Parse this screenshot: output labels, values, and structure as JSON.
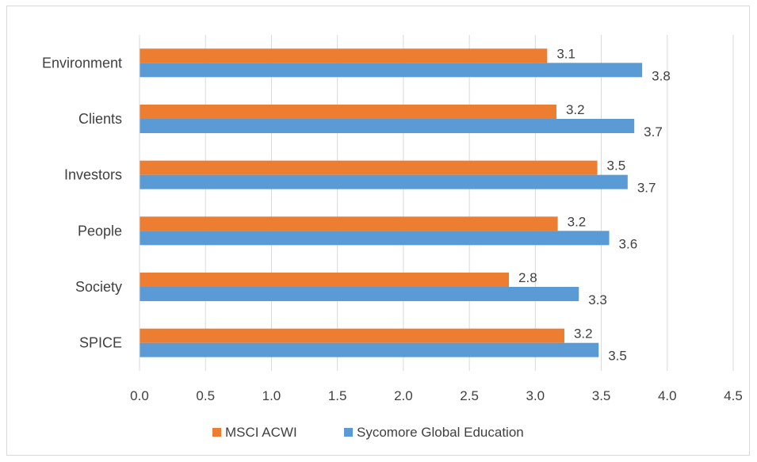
{
  "chart_data": {
    "type": "bar",
    "orientation": "horizontal",
    "title": "",
    "xlabel": "",
    "ylabel": "",
    "categories": [
      "Environment",
      "Clients",
      "Investors",
      "People",
      "Society",
      "SPICE"
    ],
    "series": [
      {
        "name": "MSCI ACWI",
        "color": "#ed7d31",
        "values": [
          3.09,
          3.16,
          3.47,
          3.17,
          2.8,
          3.22
        ],
        "labels": [
          "3.1",
          "3.2",
          "3.5",
          "3.2",
          "2.8",
          "3.2"
        ]
      },
      {
        "name": "Sycomore Global Education",
        "color": "#5b9bd5",
        "values": [
          3.81,
          3.75,
          3.7,
          3.56,
          3.33,
          3.48
        ],
        "labels": [
          "3.8",
          "3.7",
          "3.7",
          "3.6",
          "3.3",
          "3.5"
        ]
      }
    ],
    "xlim": [
      0,
      4.5
    ],
    "xticks": [
      "0.0",
      "0.5",
      "1.0",
      "1.5",
      "2.0",
      "2.5",
      "3.0",
      "3.5",
      "4.0",
      "4.5"
    ],
    "grid": "vertical",
    "legend_position": "bottom"
  }
}
